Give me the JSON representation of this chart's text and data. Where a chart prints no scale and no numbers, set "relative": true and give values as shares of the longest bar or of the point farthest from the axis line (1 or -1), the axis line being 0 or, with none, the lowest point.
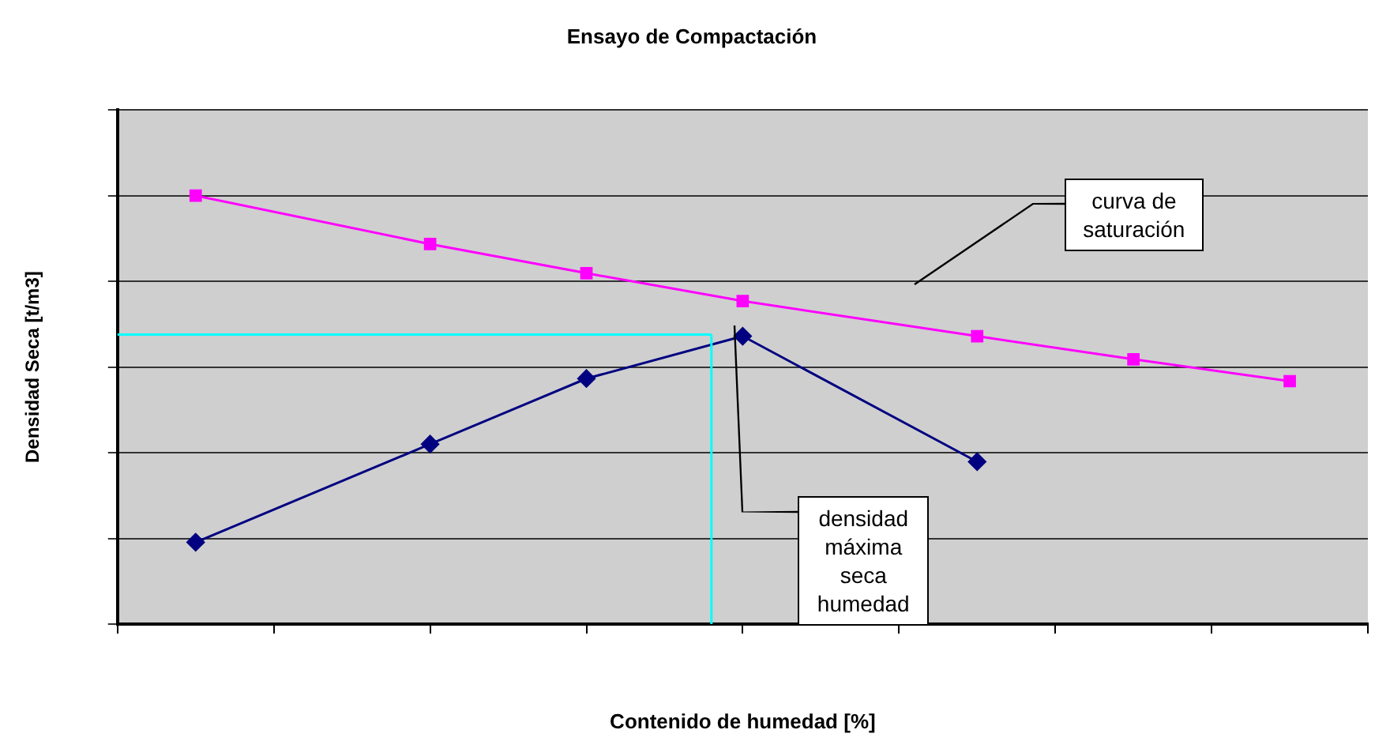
{
  "chart_data": {
    "type": "line",
    "title": "Ensayo de Compactación",
    "xlabel": "Contenido de humedad [%]",
    "ylabel": "Densidad Seca [t/m3]",
    "relative": true,
    "grid": "y",
    "categories": [
      null,
      null,
      null,
      null,
      null,
      null,
      null,
      null,
      null,
      null,
      null,
      null,
      null,
      null,
      null,
      null,
      null,
      null,
      null,
      null,
      null,
      null,
      null,
      null,
      null,
      null,
      null,
      null,
      null,
      null,
      null,
      null,
      null,
      null,
      null,
      null,
      null,
      null,
      null,
      null,
      null,
      null,
      null,
      null,
      null,
      null,
      null,
      null,
      null,
      null,
      null,
      null,
      null,
      null,
      null,
      null,
      null,
      null,
      null,
      null,
      null,
      null,
      null,
      null,
      null,
      null,
      null,
      null,
      null,
      null,
      null,
      null,
      null,
      null,
      null,
      null,
      null,
      null,
      null,
      null,
      null
    ],
    "series": [
      {
        "color": "#ff00ff",
        "marker": "square",
        "values": [
          null,
          null,
          null,
          null,
          null,
          1,
          null,
          null,
          null,
          null,
          null,
          null,
          null,
          null,
          null,
          null,
          null,
          null,
          null,
          null,
          0.887,
          null,
          null,
          null,
          null,
          null,
          null,
          null,
          null,
          null,
          0.819,
          null,
          null,
          null,
          null,
          null,
          null,
          null,
          null,
          null,
          0.754,
          null,
          null,
          null,
          null,
          null,
          null,
          null,
          null,
          null,
          null,
          null,
          null,
          null,
          null,
          0.672,
          null,
          null,
          null,
          null,
          null,
          null,
          null,
          null,
          null,
          0.618,
          null,
          null,
          null,
          null,
          null,
          null,
          null,
          null,
          null,
          0.567,
          null,
          null,
          null,
          null,
          null
        ]
      },
      {
        "color": "#000080",
        "marker": "diamond",
        "values": [
          null,
          null,
          null,
          null,
          null,
          0.191,
          null,
          null,
          null,
          null,
          null,
          null,
          null,
          null,
          null,
          null,
          null,
          null,
          null,
          null,
          0.42,
          null,
          null,
          null,
          null,
          null,
          null,
          null,
          null,
          null,
          0.573,
          null,
          null,
          null,
          null,
          null,
          null,
          null,
          null,
          null,
          0.672,
          null,
          null,
          null,
          null,
          null,
          null,
          null,
          null,
          null,
          null,
          null,
          null,
          null,
          null,
          0.379,
          null,
          null,
          null,
          null,
          null,
          null,
          null,
          null,
          null,
          null,
          null,
          null,
          null,
          null,
          null,
          null,
          null,
          null,
          null,
          null,
          null,
          null,
          null,
          null,
          null
        ]
      },
      {
        "color": "#00ffff",
        "marker": "none",
        "values": [
          0.676,
          0.676,
          0.676,
          0.676,
          0.676,
          0.676,
          0.676,
          0.676,
          0.676,
          0.676,
          0.676,
          0.676,
          0.676,
          0.676,
          0.676,
          0.676,
          0.676,
          0.676,
          0.676,
          0.676,
          0.676,
          0.676,
          0.676,
          0.676,
          0.676,
          0.676,
          0.676,
          0.676,
          0.676,
          0.676,
          0.676,
          0.676,
          0.676,
          0.676,
          0.676,
          0.676,
          0.676,
          0.676,
          0.676,
          null,
          null,
          null,
          null,
          null,
          null,
          null,
          null,
          null,
          null,
          null,
          null,
          null,
          null,
          null,
          null,
          null,
          null,
          null,
          null,
          null,
          null,
          null,
          null,
          null,
          null,
          null,
          null,
          null,
          null,
          null,
          null,
          null,
          null,
          null,
          null,
          null,
          null,
          null,
          null,
          null,
          null
        ]
      }
    ],
    "annotations": [
      "curva de saturación",
      "densidad máxima seca humedad"
    ]
  }
}
